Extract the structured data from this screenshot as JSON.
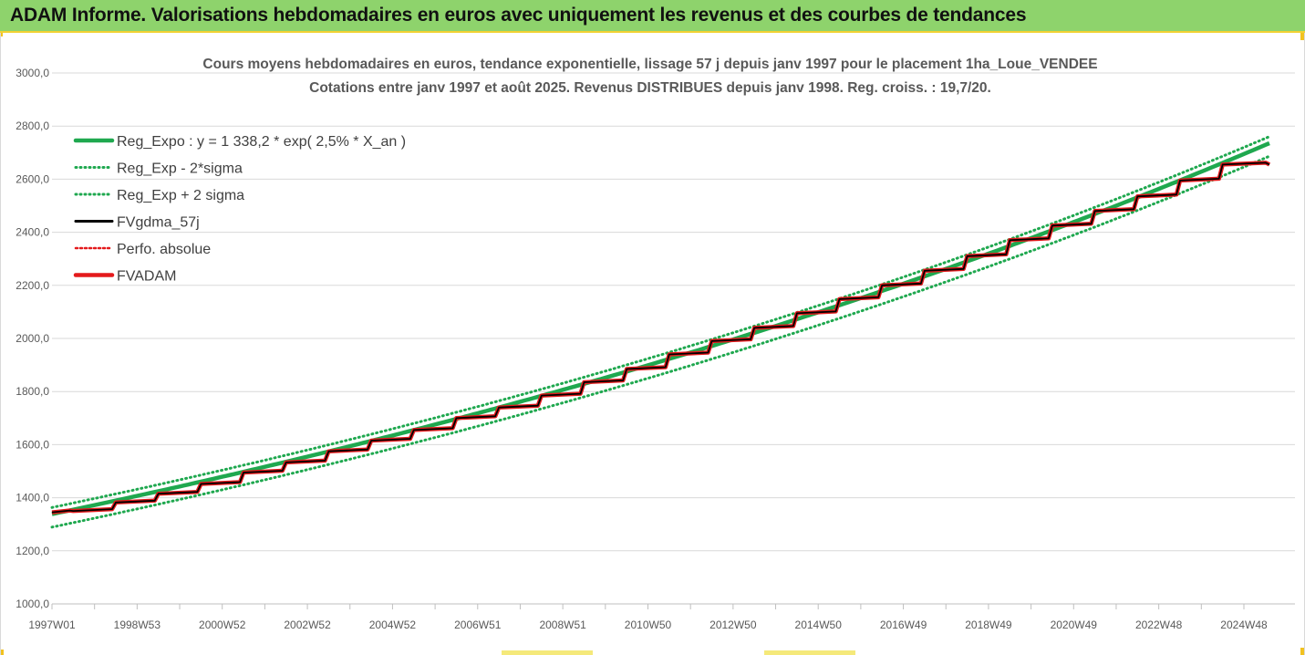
{
  "banner": {
    "title": "ADAM Informe. Valorisations hebdomadaires en euros avec uniquement les revenus et des courbes de tendances"
  },
  "colors": {
    "banner_bg": "#8ed36c",
    "trend": "#1fa84f",
    "fvgdma": "#000000",
    "perf": "#e41a1c",
    "fvadam": "#e41a1c"
  },
  "chart_data": {
    "type": "line",
    "title_lines": [
      "Cours moyens hebdomadaires en euros, tendance exponentielle, lissage 57 j depuis janv 1997 pour le placement 1ha_Loue_VENDEE",
      "Cotations entre janv 1997 et août 2025. Revenus DISTRIBUES depuis janv 1998. Reg. croiss. : 19,7/20."
    ],
    "xlabel": "",
    "ylabel": "",
    "ylim": [
      1000,
      3000
    ],
    "yticks": [
      "1000,0",
      "1200,0",
      "1400,0",
      "1600,0",
      "1800,0",
      "2000,0",
      "2200,0",
      "2400,0",
      "2600,0",
      "2800,0",
      "3000,0"
    ],
    "xrange_years": [
      1997.0,
      2025.6
    ],
    "xticks": [
      {
        "label": "1997W01",
        "year": 1997.0
      },
      {
        "label": "1998W53",
        "year": 1999.0
      },
      {
        "label": "2000W52",
        "year": 2001.0
      },
      {
        "label": "2002W52",
        "year": 2003.0
      },
      {
        "label": "2004W52",
        "year": 2005.0
      },
      {
        "label": "2006W51",
        "year": 2007.0
      },
      {
        "label": "2008W51",
        "year": 2009.0
      },
      {
        "label": "2010W50",
        "year": 2011.0
      },
      {
        "label": "2012W50",
        "year": 2013.0
      },
      {
        "label": "2014W50",
        "year": 2015.0
      },
      {
        "label": "2016W49",
        "year": 2017.0
      },
      {
        "label": "2018W49",
        "year": 2019.0
      },
      {
        "label": "2020W49",
        "year": 2021.0
      },
      {
        "label": "2022W48",
        "year": 2023.0
      },
      {
        "label": "2024W48",
        "year": 2025.0
      }
    ],
    "grid": true,
    "legend_position": "top-left",
    "regression": {
      "intercept": 1338.2,
      "rate": 0.025,
      "sigma_band": 45
    },
    "series": [
      {
        "name": "Reg_Expo : y = 1 338,2 * exp( 2,5% *  X_an )",
        "style": "solid-thick",
        "color": "#1fa84f",
        "x": [
          1997.0,
          2000.0,
          2005.0,
          2010.0,
          2015.0,
          2020.0,
          2025.6
        ],
        "y": [
          1338.2,
          1441,
          1633,
          1848,
          2093,
          2370,
          2737
        ]
      },
      {
        "name": "Reg_Exp - 2*sigma",
        "style": "dotted",
        "color": "#1fa84f",
        "x": [
          1997.0,
          2000.0,
          2005.0,
          2010.0,
          2015.0,
          2020.0,
          2025.6
        ],
        "y": [
          1312,
          1410,
          1596,
          1808,
          2048,
          2320,
          2700
        ]
      },
      {
        "name": "Reg_Exp + 2 sigma",
        "style": "dotted",
        "color": "#1fa84f",
        "x": [
          1997.0,
          2000.0,
          2005.0,
          2010.0,
          2015.0,
          2020.0,
          2025.6
        ],
        "y": [
          1365,
          1470,
          1665,
          1888,
          2138,
          2420,
          2808
        ]
      },
      {
        "name": "FVgdma_57j",
        "style": "solid",
        "color": "#000000",
        "steps": "same-as-FVADAM"
      },
      {
        "name": "Perfo. absolue",
        "style": "dotted",
        "color": "#e41a1c",
        "steps": "same-as-FVADAM"
      },
      {
        "name": "FVADAM",
        "style": "solid-thick",
        "color": "#e41a1c",
        "step_x": [
          1997.0,
          1997.5,
          1998.5,
          1999.5,
          2000.5,
          2001.5,
          2002.5,
          2003.5,
          2004.5,
          2005.5,
          2006.5,
          2007.5,
          2008.5,
          2009.5,
          2010.5,
          2011.5,
          2012.5,
          2013.5,
          2014.5,
          2015.5,
          2016.5,
          2017.5,
          2018.5,
          2019.5,
          2020.5,
          2021.5,
          2022.5,
          2023.5,
          2024.5,
          2025.6
        ],
        "step_y": [
          1345,
          1350,
          1382,
          1415,
          1452,
          1495,
          1533,
          1575,
          1615,
          1655,
          1700,
          1740,
          1785,
          1835,
          1885,
          1940,
          1990,
          2040,
          2095,
          2148,
          2200,
          2255,
          2310,
          2370,
          2425,
          2480,
          2535,
          2595,
          2655,
          2718
        ]
      }
    ]
  }
}
